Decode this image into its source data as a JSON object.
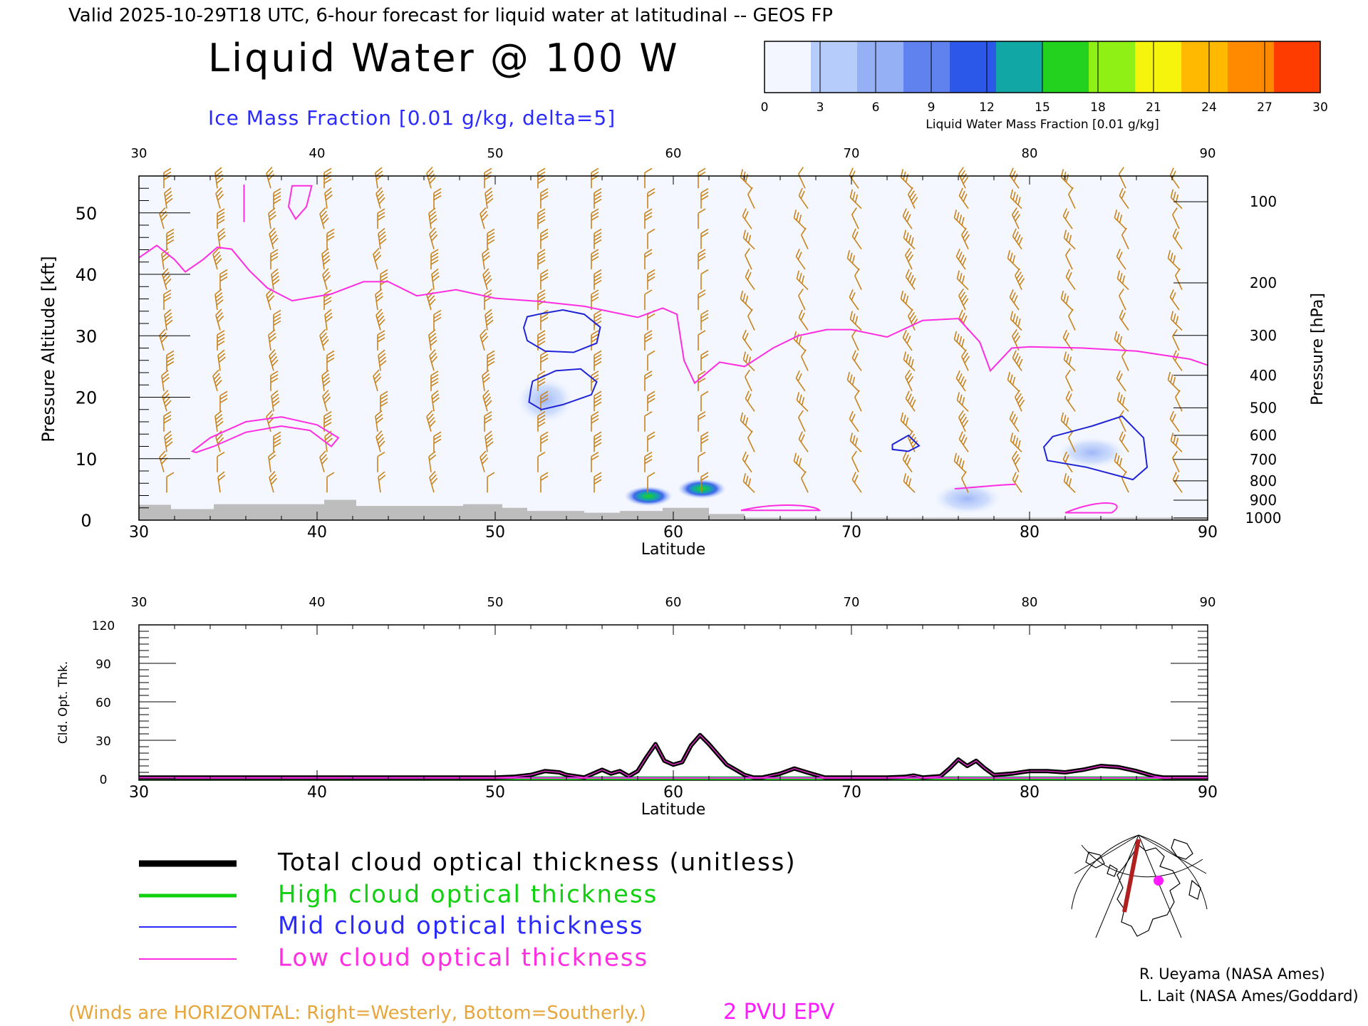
{
  "header": {
    "valid_line": "Valid 2025-10-29T18 UTC, 6-hour forecast for liquid water at latitudinal -- GEOS FP",
    "main_title": "Liquid Water @ 100 W",
    "ice_label": "Ice Mass Fraction [0.01 g/kg, delta=5]"
  },
  "colorbar": {
    "ticks": [
      "0",
      "3",
      "6",
      "9",
      "12",
      "15",
      "18",
      "21",
      "24",
      "27",
      "30"
    ],
    "label": "Liquid Water Mass Fraction [0.01 g/kg]",
    "colors": [
      "#f3f6fe",
      "#b6ccfb",
      "#96b0f6",
      "#5f82ee",
      "#2c58ea",
      "#11a7a5",
      "#22d21e",
      "#8ef014",
      "#f6f30c",
      "#ffb900",
      "#ff8a00",
      "#ff3c00"
    ]
  },
  "colors": {
    "wind": "#c8841c",
    "epv": "#ff2ee0",
    "ice_contour": "#2024d4",
    "terrain": "#bdbdbd",
    "total": "#000000",
    "high": "#10d010",
    "mid": "#2a2aff",
    "low": "#ff2ee0"
  },
  "top_panel": {
    "ylabel_left": "Pressure Altitude [kft]",
    "ylabel_right": "Pressure [hPa]",
    "xlabel": "Latitude",
    "top_ticks": [
      "30",
      "40",
      "50",
      "60",
      "70",
      "80",
      "90"
    ],
    "bottom_ticks": [
      "30",
      "40",
      "50",
      "60",
      "70",
      "80",
      "90"
    ],
    "left_ticks": [
      "0",
      "10",
      "20",
      "30",
      "40",
      "50"
    ],
    "right_ticks": [
      "100",
      "200",
      "300",
      "400",
      "500",
      "600",
      "700",
      "800",
      "900",
      "1000"
    ]
  },
  "bottom_panel": {
    "ylabel": "Cld. Opt. Thk.",
    "xlabel": "Latitude",
    "top_ticks": [
      "30",
      "40",
      "50",
      "60",
      "70",
      "80",
      "90"
    ],
    "bottom_ticks": [
      "30",
      "40",
      "50",
      "60",
      "70",
      "80",
      "90"
    ],
    "left_ticks": [
      "0",
      "30",
      "60",
      "90",
      "120"
    ]
  },
  "legend": {
    "total": "Total cloud optical thickness (unitless)",
    "high": "High cloud optical thickness",
    "mid": "Mid cloud optical thickness",
    "low": "Low cloud optical thickness"
  },
  "footer": {
    "winds_note": "(Winds are HORIZONTAL: Right=Westerly, Bottom=Southerly.)",
    "epv_label": "2 PVU EPV",
    "credit1": "R. Ueyama (NASA Ames)",
    "credit2": "L. Lait (NASA Ames/Goddard)"
  },
  "chart_data": [
    {
      "type": "heatmap",
      "title": "Liquid Water @ 100 W",
      "xlabel": "Latitude",
      "ylabel": "Pressure Altitude [kft]",
      "xlim": [
        30,
        90
      ],
      "ylim": [
        0,
        56
      ],
      "liquid_water_blobs": [
        {
          "lat": 58.6,
          "alt_kft": 3.9,
          "peak": 17
        },
        {
          "lat": 61.6,
          "alt_kft": 5.1,
          "peak": 16
        },
        {
          "lat": 52.8,
          "alt_kft": 19.5,
          "peak": 2
        },
        {
          "lat": 76.5,
          "alt_kft": 3.5,
          "peak": 4
        },
        {
          "lat": 83.5,
          "alt_kft": 11.0,
          "peak": 3
        }
      ],
      "epv_2pvu_kft": [
        [
          30,
          42.7
        ],
        [
          31,
          44.7
        ],
        [
          32,
          42.4
        ],
        [
          32.6,
          40.4
        ],
        [
          33.6,
          42.4
        ],
        [
          34.4,
          44.4
        ],
        [
          35.2,
          44.1
        ],
        [
          36.2,
          40.6
        ],
        [
          37.2,
          37.8
        ],
        [
          38.6,
          35.7
        ],
        [
          40.8,
          36.8
        ],
        [
          42.6,
          38.8
        ],
        [
          44,
          38.8
        ],
        [
          45.6,
          36.5
        ],
        [
          47.8,
          37.5
        ],
        [
          50,
          36.1
        ],
        [
          52.4,
          35.6
        ],
        [
          55,
          34.8
        ],
        [
          58,
          33.0
        ],
        [
          59.4,
          34.5
        ],
        [
          60.2,
          33.5
        ],
        [
          60.6,
          26.0
        ],
        [
          61.2,
          22.3
        ],
        [
          62.6,
          25.7
        ],
        [
          64,
          25.0
        ],
        [
          65.6,
          28.0
        ],
        [
          67,
          30.0
        ],
        [
          68.6,
          31.0
        ],
        [
          70,
          31.0
        ],
        [
          72,
          29.8
        ],
        [
          74,
          32.5
        ],
        [
          76,
          32.8
        ],
        [
          77.2,
          29.0
        ],
        [
          77.8,
          24.3
        ],
        [
          79,
          28.0
        ],
        [
          80,
          28.2
        ],
        [
          83,
          28.0
        ],
        [
          86,
          27.5
        ],
        [
          89,
          26.2
        ],
        [
          90,
          25.2
        ]
      ],
      "epv_low_loop_kft": [
        [
          33,
          11.2
        ],
        [
          34,
          13.4
        ],
        [
          36,
          16.0
        ],
        [
          38,
          16.8
        ],
        [
          40,
          15.5
        ],
        [
          41.2,
          13.4
        ],
        [
          40.8,
          12.0
        ],
        [
          39.6,
          14.6
        ],
        [
          38,
          15.3
        ],
        [
          36,
          14.3
        ],
        [
          34.2,
          12.0
        ],
        [
          33.2,
          11.0
        ]
      ],
      "ice_contours_kft": [
        [
          [
            52.6,
            33.6
          ],
          [
            53.8,
            34.2
          ],
          [
            55,
            33.5
          ],
          [
            55.9,
            31.4
          ],
          [
            55.7,
            28.8
          ],
          [
            54.4,
            27.3
          ],
          [
            52.8,
            27.5
          ],
          [
            51.8,
            29.2
          ],
          [
            51.6,
            31.3
          ],
          [
            51.8,
            33.1
          ]
        ],
        [
          [
            52.1,
            22.6
          ],
          [
            53.4,
            24.3
          ],
          [
            54.8,
            24.6
          ],
          [
            55.7,
            22.5
          ],
          [
            55.4,
            20.4
          ],
          [
            53.8,
            18.8
          ],
          [
            52.6,
            18.0
          ],
          [
            51.9,
            19.2
          ],
          [
            52.0,
            21.2
          ]
        ],
        [
          [
            81.3,
            13.6
          ],
          [
            83.5,
            15.3
          ],
          [
            85.2,
            16.9
          ],
          [
            86.4,
            13.4
          ],
          [
            86.6,
            8.6
          ],
          [
            85.8,
            6.6
          ],
          [
            83.2,
            8.6
          ],
          [
            81,
            9.7
          ],
          [
            80.8,
            11.9
          ]
        ],
        [
          [
            72.3,
            12.3
          ],
          [
            73.2,
            13.8
          ],
          [
            73.8,
            12.1
          ],
          [
            73.2,
            11.2
          ],
          [
            72.3,
            11.5
          ]
        ]
      ],
      "terrain_kft": [
        [
          30,
          2.5
        ],
        [
          31.8,
          2.5
        ],
        [
          31.8,
          1.8
        ],
        [
          34.2,
          1.8
        ],
        [
          34.2,
          2.6
        ],
        [
          40.4,
          2.6
        ],
        [
          40.4,
          3.3
        ],
        [
          42.2,
          3.3
        ],
        [
          42.2,
          2.3
        ],
        [
          48.2,
          2.3
        ],
        [
          48.2,
          2.6
        ],
        [
          50.4,
          2.6
        ],
        [
          50.4,
          2.0
        ],
        [
          51.8,
          2.0
        ],
        [
          51.8,
          1.5
        ],
        [
          55,
          1.5
        ],
        [
          55,
          1.2
        ],
        [
          57,
          1.2
        ],
        [
          57,
          1.5
        ],
        [
          59.4,
          1.5
        ],
        [
          59.4,
          2.0
        ],
        [
          62,
          2.0
        ],
        [
          62,
          1.0
        ],
        [
          64,
          1.0
        ],
        [
          64,
          0.4
        ],
        [
          90,
          0.4
        ]
      ]
    },
    {
      "type": "line",
      "xlabel": "Latitude",
      "ylabel": "Cld. Opt. Thk.",
      "xlim": [
        30,
        90
      ],
      "ylim": [
        0,
        120
      ],
      "series": [
        {
          "name": "Total cloud optical thickness (unitless)",
          "x": [
            30,
            50,
            51,
            52,
            52.8,
            53.6,
            54,
            55,
            55.5,
            56,
            56.5,
            57,
            57.5,
            58,
            58.5,
            59,
            59.5,
            60,
            60.5,
            61,
            61.5,
            62,
            62.5,
            63,
            63.5,
            64,
            64.5,
            65,
            66,
            66.8,
            67.5,
            68.5,
            70,
            72,
            73,
            73.5,
            74,
            75,
            75.5,
            76,
            76.5,
            77,
            77.5,
            78,
            79,
            80,
            81,
            82,
            83,
            84,
            85,
            86,
            87,
            87.5,
            88,
            90
          ],
          "y": [
            1,
            1,
            1.5,
            3,
            6,
            5,
            3,
            1,
            4,
            7,
            4,
            6,
            2,
            6,
            17,
            27,
            14,
            11,
            13,
            26,
            34,
            27,
            19,
            11,
            7,
            3,
            1,
            1,
            4,
            8,
            5,
            1,
            1,
            1,
            1.5,
            2.5,
            1,
            2,
            8,
            15,
            10,
            14,
            8,
            3,
            4,
            6,
            6,
            5,
            7,
            10,
            9,
            6,
            2,
            1,
            1,
            1
          ]
        },
        {
          "name": "High cloud optical thickness",
          "x": [
            30,
            90
          ],
          "y": [
            0.5,
            0.5
          ]
        },
        {
          "name": "Mid cloud optical thickness",
          "x": [
            30,
            90
          ],
          "y": [
            0.8,
            0.8
          ]
        },
        {
          "name": "Low cloud optical thickness",
          "x": [
            30,
            90
          ],
          "y": [
            0.6,
            0.6
          ]
        }
      ]
    }
  ]
}
